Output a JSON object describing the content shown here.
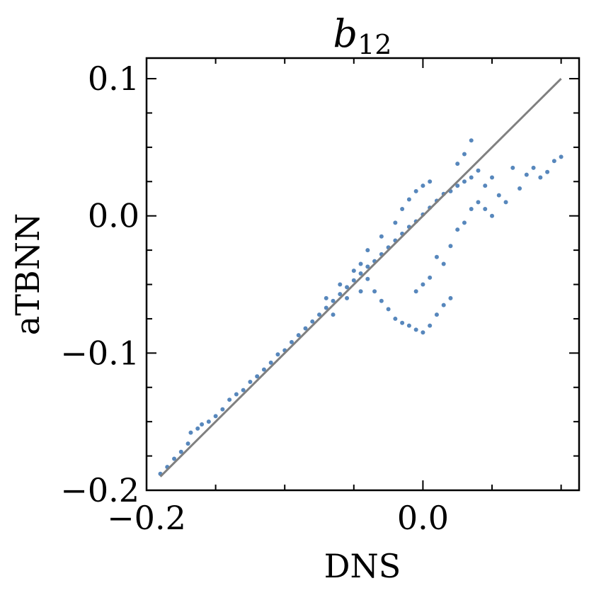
{
  "chart_data": {
    "type": "scatter",
    "title_main": "b",
    "title_sub": "12",
    "xlabel": "DNS",
    "ylabel": "aTBNN",
    "xlim": [
      -0.2,
      0.113
    ],
    "ylim": [
      -0.2,
      0.115
    ],
    "x_ticks": [
      {
        "value": -0.2,
        "label": "−0.2"
      },
      {
        "value": 0.0,
        "label": "0.0"
      }
    ],
    "y_ticks": [
      {
        "value": -0.2,
        "label": "−0.2"
      },
      {
        "value": -0.1,
        "label": "−0.1"
      },
      {
        "value": 0.0,
        "label": "0.0"
      },
      {
        "value": 0.1,
        "label": "0.1"
      }
    ],
    "reference_line": {
      "x": [
        -0.19,
        0.1
      ],
      "y": [
        -0.19,
        0.1
      ],
      "color": "#808080"
    },
    "series_color": "#1f5fa5",
    "points": [
      [
        -0.19,
        -0.188
      ],
      [
        -0.185,
        -0.183
      ],
      [
        -0.18,
        -0.177
      ],
      [
        -0.175,
        -0.172
      ],
      [
        -0.17,
        -0.166
      ],
      [
        -0.168,
        -0.158
      ],
      [
        -0.163,
        -0.155
      ],
      [
        -0.16,
        -0.152
      ],
      [
        -0.155,
        -0.15
      ],
      [
        -0.15,
        -0.146
      ],
      [
        -0.145,
        -0.141
      ],
      [
        -0.14,
        -0.134
      ],
      [
        -0.135,
        -0.13
      ],
      [
        -0.13,
        -0.127
      ],
      [
        -0.125,
        -0.121
      ],
      [
        -0.12,
        -0.117
      ],
      [
        -0.115,
        -0.112
      ],
      [
        -0.11,
        -0.107
      ],
      [
        -0.105,
        -0.101
      ],
      [
        -0.1,
        -0.098
      ],
      [
        -0.095,
        -0.092
      ],
      [
        -0.09,
        -0.087
      ],
      [
        -0.085,
        -0.082
      ],
      [
        -0.08,
        -0.077
      ],
      [
        -0.075,
        -0.072
      ],
      [
        -0.07,
        -0.067
      ],
      [
        -0.065,
        -0.062
      ],
      [
        -0.06,
        -0.057
      ],
      [
        -0.055,
        -0.052
      ],
      [
        -0.05,
        -0.047
      ],
      [
        -0.045,
        -0.042
      ],
      [
        -0.04,
        -0.037
      ],
      [
        -0.035,
        -0.033
      ],
      [
        -0.03,
        -0.028
      ],
      [
        -0.025,
        -0.023
      ],
      [
        -0.02,
        -0.018
      ],
      [
        -0.015,
        -0.013
      ],
      [
        -0.01,
        -0.008
      ],
      [
        -0.005,
        -0.004
      ],
      [
        0.0,
        0.001
      ],
      [
        0.005,
        0.006
      ],
      [
        0.01,
        0.011
      ],
      [
        0.015,
        0.016
      ],
      [
        -0.04,
        -0.046
      ],
      [
        -0.035,
        -0.055
      ],
      [
        -0.03,
        -0.062
      ],
      [
        -0.025,
        -0.068
      ],
      [
        -0.02,
        -0.075
      ],
      [
        -0.015,
        -0.078
      ],
      [
        -0.01,
        -0.08
      ],
      [
        -0.005,
        -0.083
      ],
      [
        0.0,
        -0.085
      ],
      [
        0.005,
        -0.08
      ],
      [
        0.01,
        -0.072
      ],
      [
        0.015,
        -0.065
      ],
      [
        0.02,
        -0.06
      ],
      [
        0.015,
        -0.035
      ],
      [
        0.02,
        -0.022
      ],
      [
        0.025,
        -0.01
      ],
      [
        0.01,
        -0.03
      ],
      [
        0.005,
        -0.045
      ],
      [
        0.0,
        -0.05
      ],
      [
        -0.005,
        -0.055
      ],
      [
        0.02,
        0.018
      ],
      [
        0.025,
        0.022
      ],
      [
        0.03,
        0.025
      ],
      [
        0.035,
        0.028
      ],
      [
        0.04,
        0.033
      ],
      [
        0.045,
        0.022
      ],
      [
        0.05,
        0.028
      ],
      [
        0.055,
        0.015
      ],
      [
        0.06,
        0.01
      ],
      [
        0.065,
        0.035
      ],
      [
        0.07,
        0.02
      ],
      [
        0.075,
        0.03
      ],
      [
        0.08,
        0.035
      ],
      [
        0.085,
        0.028
      ],
      [
        0.09,
        0.032
      ],
      [
        0.095,
        0.04
      ],
      [
        0.1,
        0.043
      ],
      [
        0.03,
        0.045
      ],
      [
        0.035,
        0.055
      ],
      [
        0.025,
        0.038
      ],
      [
        0.04,
        0.01
      ],
      [
        0.035,
        0.005
      ],
      [
        0.03,
        -0.005
      ],
      [
        0.045,
        0.005
      ],
      [
        0.05,
        0.0
      ],
      [
        -0.05,
        -0.04
      ],
      [
        -0.045,
        -0.035
      ],
      [
        -0.06,
        -0.05
      ],
      [
        -0.07,
        -0.06
      ],
      [
        -0.02,
        -0.005
      ],
      [
        -0.015,
        0.005
      ],
      [
        -0.01,
        0.012
      ],
      [
        -0.005,
        0.018
      ],
      [
        0.0,
        0.022
      ],
      [
        0.005,
        0.025
      ],
      [
        -0.03,
        -0.015
      ],
      [
        -0.04,
        -0.025
      ],
      [
        -0.045,
        -0.055
      ],
      [
        -0.055,
        -0.06
      ],
      [
        -0.065,
        -0.072
      ]
    ]
  }
}
